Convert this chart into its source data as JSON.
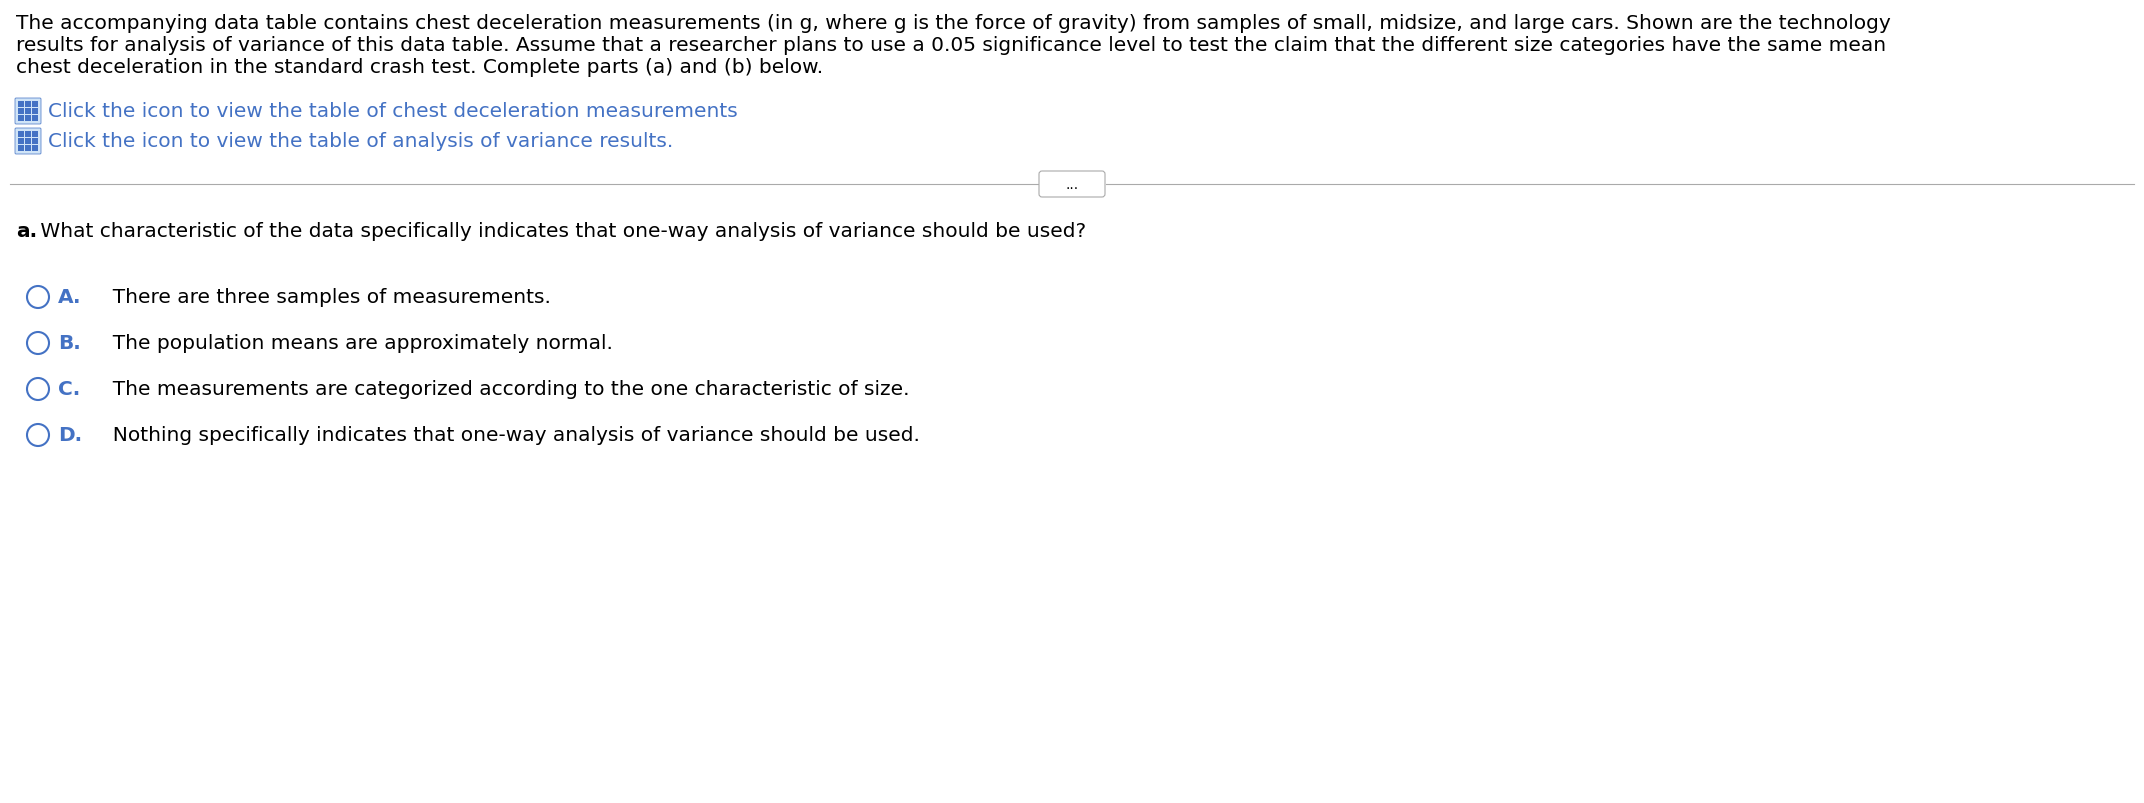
{
  "bg_color": "#ffffff",
  "para_line1": "The accompanying data table contains chest deceleration measurements (in g, where g is the force of gravity) from samples of small, midsize, and large cars. Shown are the technology",
  "para_line2": "results for analysis of variance of this data table. Assume that a researcher plans to use a 0.05 significance level to test the claim that the different size categories have the same mean",
  "para_line3": "chest deceleration in the standard crash test. Complete parts (a) and (b) below.",
  "link1_text": "Click the icon to view the table of chest deceleration measurements",
  "link2_text": "Click the icon to view the table of analysis of variance results.",
  "divider_button_text": "...",
  "question_bold": "a.",
  "question_rest": " What characteristic of the data specifically indicates that one-way analysis of variance should be used?",
  "options": [
    {
      "label": "A.",
      "text": "  There are three samples of measurements."
    },
    {
      "label": "B.",
      "text": "  The population means are approximately normal."
    },
    {
      "label": "C.",
      "text": "  The measurements are categorized according to the one characteristic of size."
    },
    {
      "label": "D.",
      "text": "  Nothing specifically indicates that one-way analysis of variance should be used."
    }
  ],
  "text_color": "#000000",
  "link_color": "#000000",
  "label_color": "#4472c4",
  "circle_color": "#4472c4",
  "divider_color": "#aaaaaa",
  "font_size_para": 14.5,
  "font_size_links": 14.5,
  "font_size_question": 14.5,
  "font_size_options": 14.5,
  "icon_color": "#4472c4",
  "icon_bg": "#5b9bd5"
}
